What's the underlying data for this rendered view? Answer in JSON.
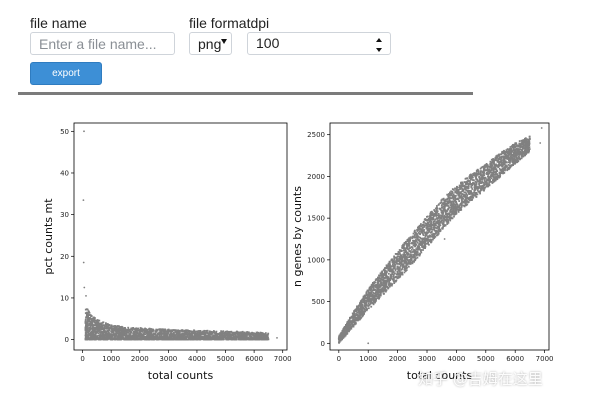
{
  "form": {
    "file_name_label": "file name",
    "file_name_placeholder": "Enter a file name...",
    "file_format_label": "file format",
    "file_format_value": "png",
    "dpi_label": "dpi",
    "dpi_value": "100",
    "export_label": "export"
  },
  "watermark": "知乎 @吉姆在这里",
  "chart_data": [
    {
      "type": "scatter",
      "title": "",
      "xlabel": "total counts",
      "ylabel": "pct counts mt",
      "xlim": [
        -300,
        7150
      ],
      "ylim": [
        -2.5,
        52
      ],
      "xticks": [
        0,
        1000,
        2000,
        3000,
        4000,
        5000,
        6000,
        7000
      ],
      "yticks": [
        0,
        10,
        20,
        30,
        40,
        50
      ],
      "color": "#808080",
      "outliers": [
        [
          50,
          50
        ],
        [
          30,
          33.5
        ],
        [
          40,
          18.5
        ],
        [
          60,
          12.5
        ],
        [
          120,
          10.5
        ],
        [
          6800,
          0.4
        ]
      ],
      "trend": {
        "x": [
          100,
          300,
          600,
          1000,
          1500,
          2000,
          3000,
          4000,
          5000,
          6000,
          6500
        ],
        "y_low": [
          0,
          0,
          0,
          0,
          0,
          0,
          0,
          0,
          0,
          0,
          0
        ],
        "y_high": [
          8,
          6,
          4.5,
          3.5,
          3,
          2.8,
          2.4,
          2.2,
          2,
          1.8,
          1.6
        ]
      }
    },
    {
      "type": "scatter",
      "title": "",
      "xlabel": "total counts",
      "ylabel": "n genes by counts",
      "xlim": [
        -300,
        7150
      ],
      "ylim": [
        -80,
        2640
      ],
      "xticks": [
        0,
        1000,
        2000,
        3000,
        4000,
        5000,
        6000,
        7000
      ],
      "yticks": [
        0,
        500,
        1000,
        1500,
        2000,
        2500
      ],
      "color": "#808080",
      "outliers": [
        [
          6900,
          2580
        ],
        [
          6850,
          2400
        ],
        [
          3600,
          1250
        ],
        [
          1000,
          0
        ]
      ],
      "trend": {
        "x": [
          0,
          500,
          1000,
          1500,
          2000,
          2500,
          3000,
          3500,
          4000,
          4500,
          5000,
          5500,
          6000,
          6500
        ],
        "y_low": [
          0,
          200,
          400,
          580,
          760,
          950,
          1150,
          1350,
          1550,
          1700,
          1850,
          2000,
          2150,
          2300
        ],
        "y_high": [
          80,
          380,
          650,
          880,
          1100,
          1320,
          1520,
          1720,
          1890,
          2030,
          2150,
          2280,
          2400,
          2480
        ]
      }
    }
  ]
}
